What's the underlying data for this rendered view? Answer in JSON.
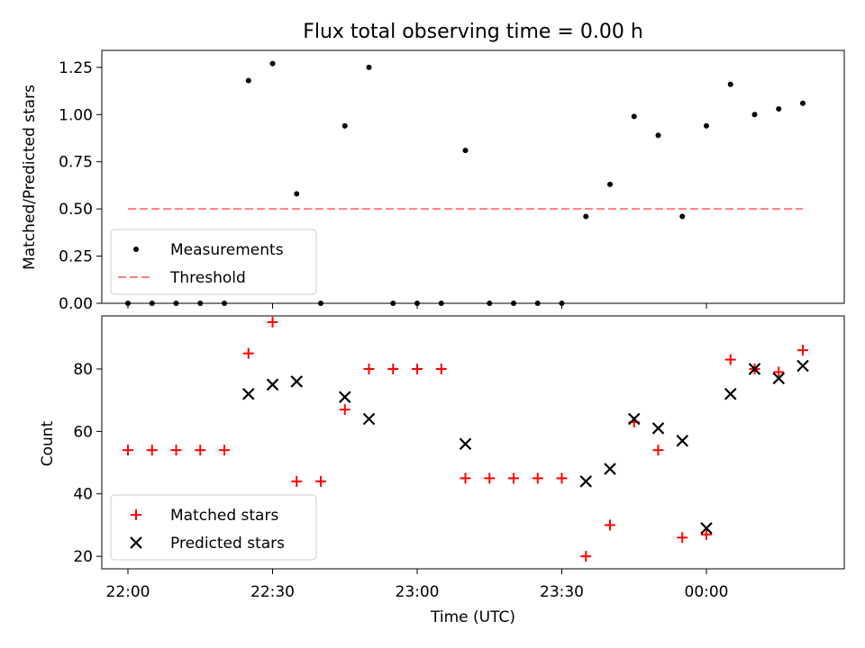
{
  "chart_data": [
    {
      "type": "scatter",
      "title": "Flux total observing time = 0.00 h",
      "ylabel": "Matched/Predicted stars",
      "xlabel": "",
      "ylim": [
        0,
        1.34
      ],
      "yticks": [
        "0.00",
        "0.25",
        "0.50",
        "0.75",
        "1.00",
        "1.25"
      ],
      "grid": false,
      "legend_placement": "lower-left",
      "series": [
        {
          "name": "Measurements",
          "marker": "dot",
          "color": "#000000",
          "points": [
            [
              "22:00",
              0.0
            ],
            [
              "22:05",
              0.0
            ],
            [
              "22:10",
              0.0
            ],
            [
              "22:15",
              0.0
            ],
            [
              "22:20",
              0.0
            ],
            [
              "22:25",
              1.18
            ],
            [
              "22:30",
              1.27
            ],
            [
              "22:35",
              0.58
            ],
            [
              "22:40",
              0.0
            ],
            [
              "22:45",
              0.94
            ],
            [
              "22:50",
              1.25
            ],
            [
              "22:55",
              0.0
            ],
            [
              "23:00",
              0.0
            ],
            [
              "23:05",
              0.0
            ],
            [
              "23:10",
              0.81
            ],
            [
              "23:15",
              0.0
            ],
            [
              "23:20",
              0.0
            ],
            [
              "23:25",
              0.0
            ],
            [
              "23:30",
              0.0
            ],
            [
              "23:35",
              0.46
            ],
            [
              "23:40",
              0.63
            ],
            [
              "23:45",
              0.99
            ],
            [
              "23:50",
              0.89
            ],
            [
              "23:55",
              0.46
            ],
            [
              "00:00",
              0.94
            ],
            [
              "00:05",
              1.16
            ],
            [
              "00:10",
              1.0
            ],
            [
              "00:15",
              1.03
            ],
            [
              "00:20",
              1.06
            ]
          ]
        },
        {
          "name": "Threshold",
          "marker": "dashed-line",
          "color": "#ff7f7f",
          "points": [
            [
              "22:00",
              0.5
            ],
            [
              "00:20",
              0.5
            ]
          ]
        }
      ]
    },
    {
      "type": "scatter",
      "title": "",
      "ylabel": "Count",
      "xlabel": "Time (UTC)",
      "ylim": [
        16,
        97
      ],
      "yticks": [
        "20",
        "40",
        "60",
        "80"
      ],
      "xticks": [
        "22:00",
        "22:30",
        "23:00",
        "23:30",
        "00:00"
      ],
      "grid": false,
      "legend_placement": "lower-left",
      "series": [
        {
          "name": "Matched stars",
          "marker": "plus",
          "color": "#ff0000",
          "points": [
            [
              "22:00",
              54
            ],
            [
              "22:05",
              54
            ],
            [
              "22:10",
              54
            ],
            [
              "22:15",
              54
            ],
            [
              "22:20",
              54
            ],
            [
              "22:25",
              85
            ],
            [
              "22:30",
              95
            ],
            [
              "22:35",
              44
            ],
            [
              "22:40",
              44
            ],
            [
              "22:45",
              67
            ],
            [
              "22:50",
              80
            ],
            [
              "22:55",
              80
            ],
            [
              "23:00",
              80
            ],
            [
              "23:05",
              80
            ],
            [
              "23:10",
              45
            ],
            [
              "23:15",
              45
            ],
            [
              "23:20",
              45
            ],
            [
              "23:25",
              45
            ],
            [
              "23:30",
              45
            ],
            [
              "23:35",
              20
            ],
            [
              "23:40",
              30
            ],
            [
              "23:45",
              63
            ],
            [
              "23:50",
              54
            ],
            [
              "23:55",
              26
            ],
            [
              "00:00",
              27
            ],
            [
              "00:05",
              83
            ],
            [
              "00:10",
              80
            ],
            [
              "00:15",
              79
            ],
            [
              "00:20",
              86
            ]
          ]
        },
        {
          "name": "Predicted stars",
          "marker": "x",
          "color": "#000000",
          "points": [
            [
              "22:25",
              72
            ],
            [
              "22:30",
              75
            ],
            [
              "22:35",
              76
            ],
            [
              "22:45",
              71
            ],
            [
              "22:50",
              64
            ],
            [
              "23:10",
              56
            ],
            [
              "23:35",
              44
            ],
            [
              "23:40",
              48
            ],
            [
              "23:45",
              64
            ],
            [
              "23:50",
              61
            ],
            [
              "23:55",
              57
            ],
            [
              "00:00",
              29
            ],
            [
              "00:05",
              72
            ],
            [
              "00:10",
              80
            ],
            [
              "00:15",
              77
            ],
            [
              "00:20",
              81
            ]
          ]
        }
      ]
    }
  ]
}
